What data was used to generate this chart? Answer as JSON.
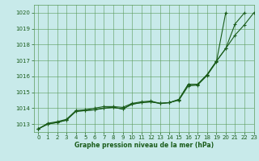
{
  "title": "Graphe pression niveau de la mer (hPa)",
  "background_color": "#c8eaea",
  "grid_color": "#5a9a5a",
  "line_color": "#1a5c1a",
  "xlim": [
    -0.5,
    23
  ],
  "ylim": [
    1012.5,
    1020.5
  ],
  "yticks": [
    1013,
    1014,
    1015,
    1016,
    1017,
    1018,
    1019,
    1020
  ],
  "xticks": [
    0,
    1,
    2,
    3,
    4,
    5,
    6,
    7,
    8,
    9,
    10,
    11,
    12,
    13,
    14,
    15,
    16,
    17,
    18,
    19,
    20,
    21,
    22,
    23
  ],
  "series": [
    [
      1012.7,
      1013.0,
      1013.1,
      1013.25,
      1013.8,
      1013.85,
      1013.9,
      1014.0,
      1014.05,
      1013.95,
      1014.25,
      1014.35,
      1014.4,
      1014.3,
      1014.35,
      1014.55,
      1015.5,
      1015.5,
      1016.1,
      1016.95,
      1017.75,
      1018.6,
      1019.25,
      1020.0
    ],
    [
      1012.7,
      1013.0,
      1013.1,
      1013.25,
      1013.8,
      1013.85,
      1013.9,
      1014.0,
      1014.05,
      1013.95,
      1014.25,
      1014.35,
      1014.4,
      1014.3,
      1014.35,
      1014.55,
      1015.5,
      1015.5,
      1016.1,
      1016.95,
      1017.75,
      1019.3,
      1020.0,
      null
    ],
    [
      1012.7,
      1013.05,
      1013.15,
      1013.3,
      1013.85,
      1013.9,
      1014.0,
      1014.1,
      1014.1,
      1014.05,
      1014.3,
      1014.4,
      1014.45,
      1014.3,
      1014.35,
      1014.5,
      1015.4,
      1015.45,
      1016.05,
      1016.9,
      1020.0,
      null,
      null,
      null
    ]
  ]
}
